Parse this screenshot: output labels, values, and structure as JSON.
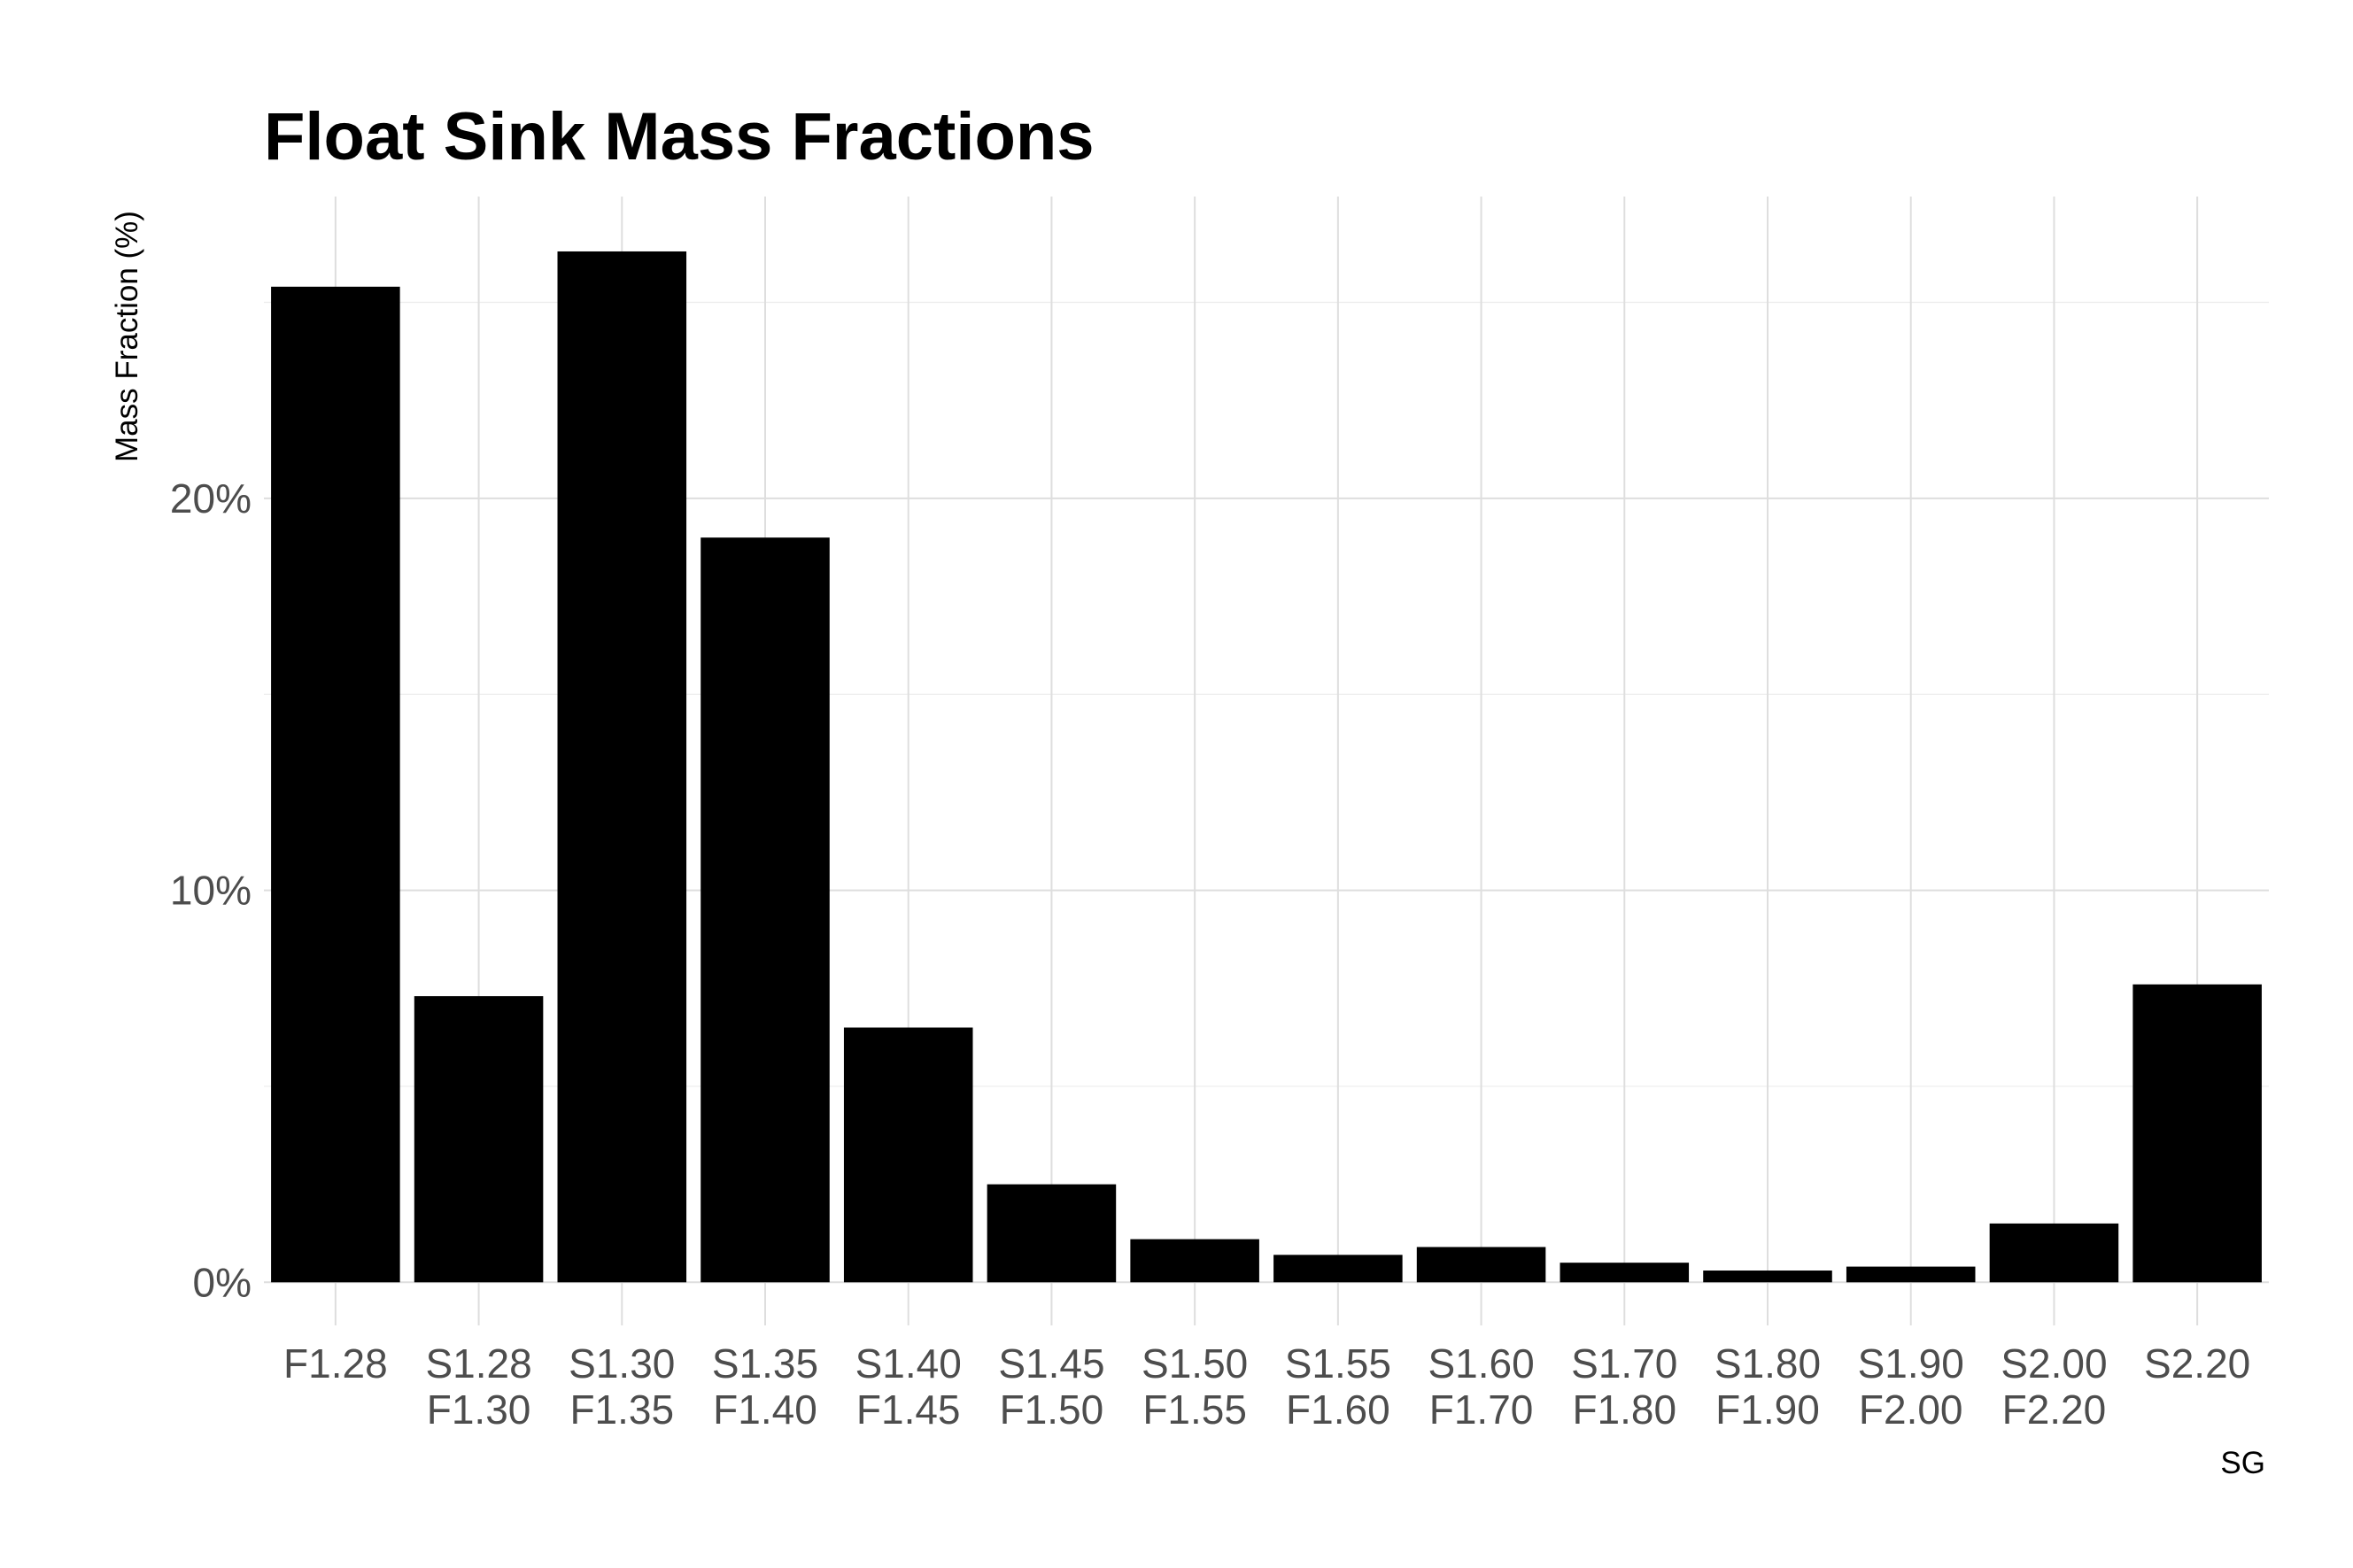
{
  "chart_data": {
    "type": "bar",
    "title": "Float Sink Mass Fractions",
    "xlabel": "SG",
    "ylabel": "Mass Fraction (%)",
    "categories": [
      [
        "F1.28"
      ],
      [
        "S1.28",
        "F1.30"
      ],
      [
        "S1.30",
        "F1.35"
      ],
      [
        "S1.35",
        "F1.40"
      ],
      [
        "S1.40",
        "F1.45"
      ],
      [
        "S1.45",
        "F1.50"
      ],
      [
        "S1.50",
        "F1.55"
      ],
      [
        "S1.55",
        "F1.60"
      ],
      [
        "S1.60",
        "F1.70"
      ],
      [
        "S1.70",
        "F1.80"
      ],
      [
        "S1.80",
        "F1.90"
      ],
      [
        "S1.90",
        "F2.00"
      ],
      [
        "S2.00",
        "F2.20"
      ],
      [
        "S2.20"
      ]
    ],
    "values": [
      25.4,
      7.3,
      26.3,
      19.0,
      6.5,
      2.5,
      1.1,
      0.7,
      0.9,
      0.5,
      0.3,
      0.4,
      1.5,
      7.6
    ],
    "ylim": [
      -1.1,
      27.7
    ],
    "yticks": [
      0,
      10,
      20
    ],
    "ytick_labels": [
      "0%",
      "10%",
      "20%"
    ],
    "grid": true,
    "legend": "none",
    "colors": {
      "bar": "#000000",
      "grid_major": "#dedede",
      "grid_minor": "#ececec",
      "tick_label": "#4d4d4d",
      "text": "#000000",
      "background": "#ffffff"
    }
  }
}
